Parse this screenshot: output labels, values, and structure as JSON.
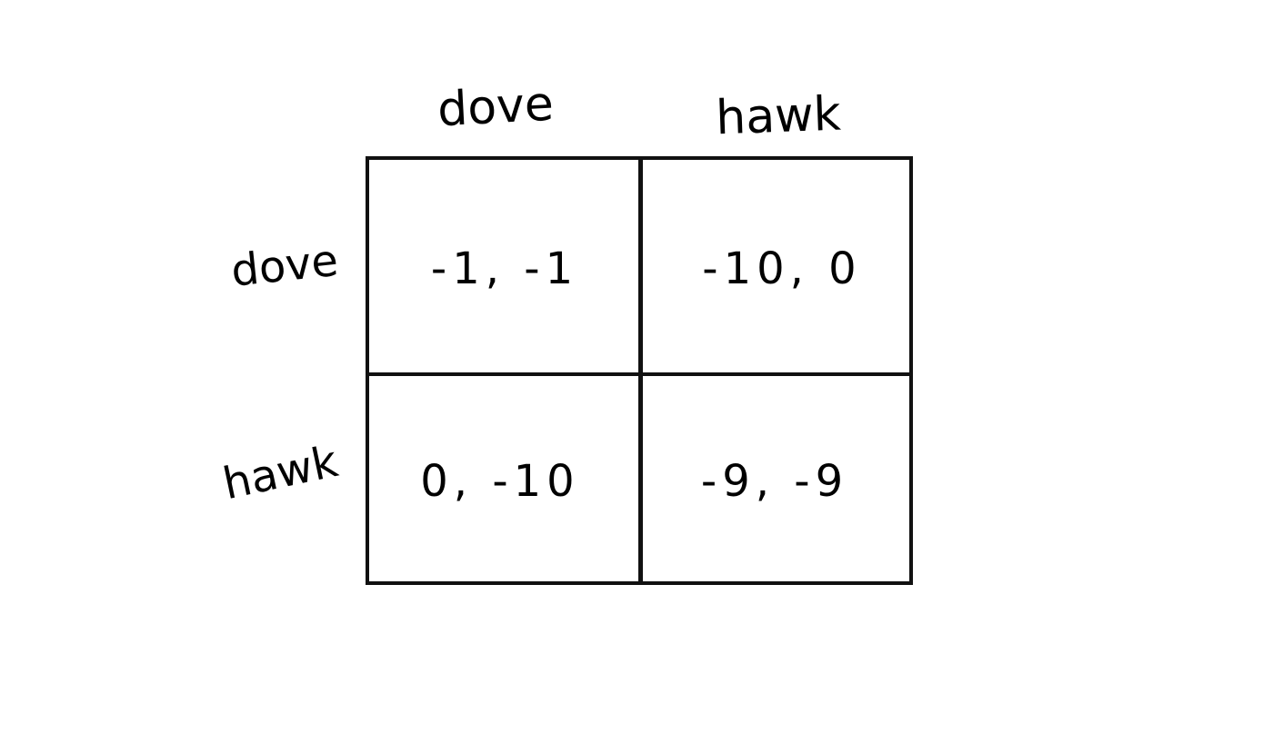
{
  "matrix": {
    "column_labels": [
      "dove",
      "hawk"
    ],
    "row_labels": [
      "dove",
      "hawk"
    ],
    "cells": [
      [
        "-1, -1",
        "-10, 0"
      ],
      [
        "0, -10",
        "-9, -9"
      ]
    ]
  }
}
